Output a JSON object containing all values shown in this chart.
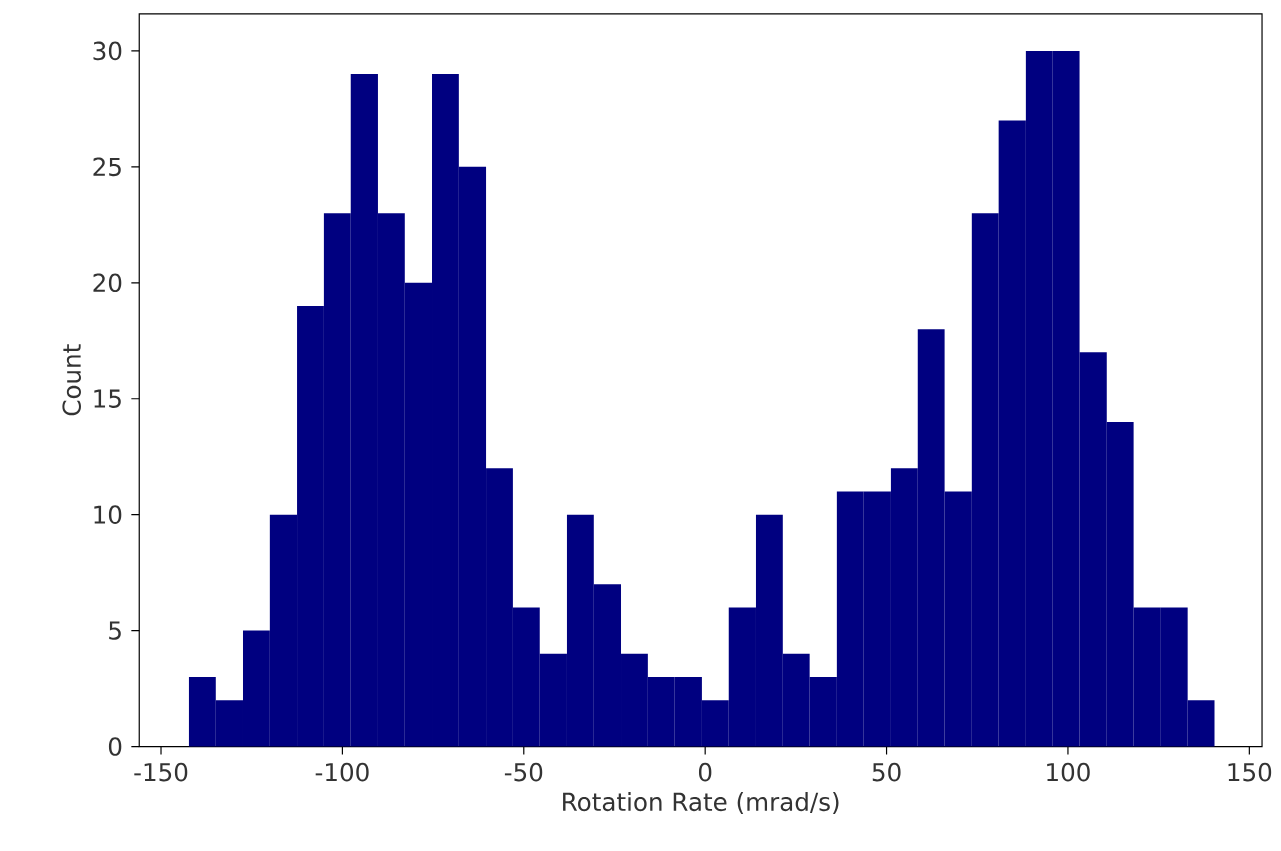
{
  "chart_data": {
    "type": "histogram",
    "xlabel": "Rotation Rate (mrad/s)",
    "ylabel": "Count",
    "bins": [
      -142.3,
      -134.9,
      -127.4,
      -120.0,
      -112.5,
      -105.1,
      -97.7,
      -90.2,
      -82.8,
      -75.3,
      -67.9,
      -60.4,
      -53.0,
      -45.6,
      -38.1,
      -30.7,
      -23.2,
      -15.8,
      -8.4,
      -0.9,
      6.5,
      14.0,
      21.4,
      28.8,
      36.3,
      43.7,
      51.2,
      58.6,
      66.0,
      73.5,
      80.9,
      88.4,
      95.8,
      103.2,
      110.7,
      118.1,
      125.6,
      133.0,
      140.4
    ],
    "values": [
      3,
      2,
      5,
      10,
      19,
      23,
      29,
      23,
      20,
      29,
      25,
      12,
      6,
      4,
      10,
      7,
      4,
      3,
      3,
      2,
      6,
      10,
      4,
      3,
      11,
      11,
      12,
      18,
      11,
      23,
      27,
      30,
      30,
      17,
      14,
      6,
      6,
      2
    ],
    "color": "#000080",
    "xlim": [
      -156,
      153.5
    ],
    "ylim": [
      0,
      31.6
    ],
    "xticks": [
      -150,
      -100,
      -50,
      0,
      50,
      100,
      150
    ],
    "yticks": [
      0,
      5,
      10,
      15,
      20,
      25,
      30
    ]
  }
}
